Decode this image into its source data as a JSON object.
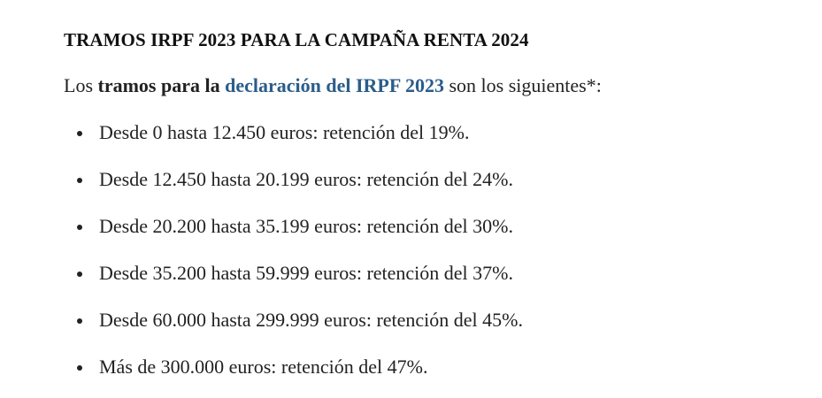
{
  "article": {
    "heading": "TRAMOS IRPF 2023 PARA LA CAMPAÑA RENTA 2024",
    "intro": {
      "prefix": "Los ",
      "bold": "tramos para la",
      "space": " ",
      "link": "declaración del IRPF 2023",
      "suffix": " son los siguientes*:"
    },
    "brackets": [
      "Desde 0 hasta 12.450 euros: retención del 19%.",
      "Desde 12.450 hasta 20.199 euros: retención del 24%.",
      "Desde 20.200 hasta 35.199 euros: retención del 30%.",
      "Desde 35.200 hasta 59.999 euros: retención del 37%.",
      "Desde 60.000 hasta 299.999 euros: retención del 45%.",
      "Más de 300.000 euros: retención del 47%."
    ],
    "colors": {
      "text": "#222222",
      "link": "#2b5d8a"
    }
  }
}
